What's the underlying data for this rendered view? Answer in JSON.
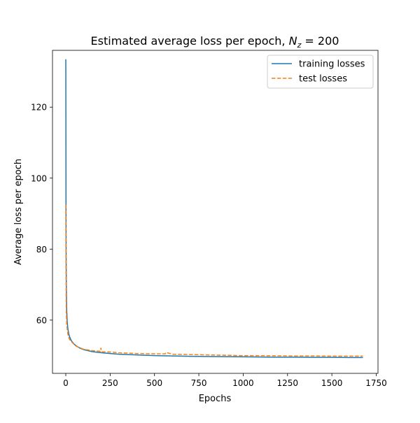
{
  "chart_data": {
    "type": "line",
    "title_prefix": "Estimated average loss per epoch, ",
    "title_var": "N",
    "title_sub": "z",
    "title_suffix": " = 200",
    "xlabel": "Epochs",
    "ylabel": "Average loss per epoch",
    "xlim": [
      -75,
      1760
    ],
    "ylim": [
      45,
      136
    ],
    "xticks": [
      0,
      250,
      500,
      750,
      1000,
      1250,
      1500,
      1750
    ],
    "xtick_labels": [
      "0",
      "250",
      "500",
      "750",
      "1000",
      "1250",
      "1500",
      "1750"
    ],
    "yticks": [
      60,
      80,
      100,
      120
    ],
    "ytick_labels": [
      "60",
      "80",
      "100",
      "120"
    ],
    "grid": false,
    "legend_position": "top-right",
    "series": [
      {
        "name": "training losses",
        "color": "#1f77b4",
        "dash": "solid",
        "x": [
          0,
          1,
          2,
          3,
          5,
          8,
          12,
          16,
          20,
          30,
          40,
          50,
          60,
          80,
          100,
          150,
          200,
          250,
          300,
          400,
          500,
          600,
          700,
          800,
          900,
          1000,
          1100,
          1200,
          1300,
          1400,
          1500,
          1600,
          1675
        ],
        "y": [
          133.5,
          95.0,
          78.0,
          70.0,
          63.0,
          59.5,
          57.5,
          56.3,
          55.5,
          54.3,
          53.6,
          53.1,
          52.7,
          52.1,
          51.7,
          51.1,
          50.8,
          50.6,
          50.4,
          50.2,
          50.0,
          49.9,
          49.8,
          49.75,
          49.7,
          49.65,
          49.6,
          49.55,
          49.55,
          49.5,
          49.5,
          49.45,
          49.45
        ]
      },
      {
        "name": "test losses",
        "color": "#ff7f0e",
        "dash": "dashed",
        "x": [
          0,
          1,
          2,
          3,
          5,
          8,
          12,
          16,
          20,
          25,
          30,
          40,
          50,
          60,
          80,
          100,
          150,
          195,
          198,
          201,
          205,
          250,
          300,
          400,
          500,
          560,
          565,
          600,
          700,
          800,
          900,
          1000,
          1100,
          1200,
          1300,
          1400,
          1500,
          1600,
          1675
        ],
        "y": [
          92.5,
          75.0,
          66.0,
          62.0,
          59.0,
          57.5,
          56.0,
          55.2,
          54.7,
          54.3,
          54.0,
          53.5,
          53.0,
          52.6,
          52.2,
          51.8,
          51.4,
          51.2,
          52.2,
          51.3,
          51.1,
          51.0,
          50.8,
          50.6,
          50.5,
          50.5,
          50.9,
          50.4,
          50.3,
          50.2,
          50.1,
          50.0,
          50.0,
          49.95,
          49.9,
          49.9,
          49.85,
          49.85,
          49.85
        ]
      }
    ]
  }
}
